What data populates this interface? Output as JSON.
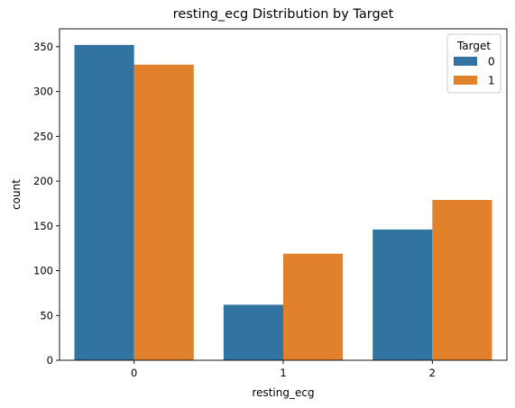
{
  "chart_data": {
    "type": "bar",
    "title": "resting_ecg Distribution by Target",
    "xlabel": "resting_ecg",
    "ylabel": "count",
    "categories": [
      "0",
      "1",
      "2"
    ],
    "series": [
      {
        "name": "0",
        "color": "#3274a1",
        "values": [
          352,
          62,
          146
        ]
      },
      {
        "name": "1",
        "color": "#e1812c",
        "values": [
          330,
          119,
          179
        ]
      }
    ],
    "ylim": [
      0,
      370
    ],
    "yticks": [
      0,
      50,
      100,
      150,
      200,
      250,
      300,
      350
    ],
    "grid": false,
    "legend": {
      "title": "Target",
      "placement": "top-right"
    }
  }
}
